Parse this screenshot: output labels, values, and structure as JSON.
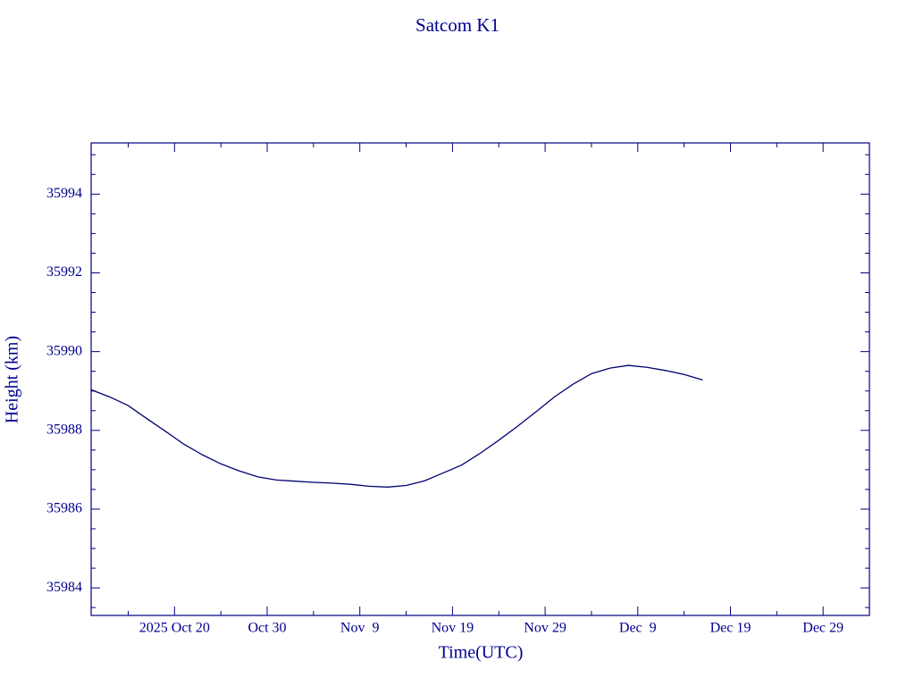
{
  "chart_data": {
    "type": "line",
    "title": "Satcom K1",
    "x_label": "Time(UTC)",
    "y_label": "Height (km)",
    "color": "#000070",
    "axis_color": "#000080",
    "x": [
      "2025-10-11",
      "2025-10-13",
      "2025-10-15",
      "2025-10-17",
      "2025-10-19",
      "2025-10-21",
      "2025-10-23",
      "2025-10-25",
      "2025-10-27",
      "2025-10-29",
      "2025-10-31",
      "2025-11-02",
      "2025-11-04",
      "2025-11-06",
      "2025-11-08",
      "2025-11-10",
      "2025-11-12",
      "2025-11-14",
      "2025-11-16",
      "2025-11-18",
      "2025-11-20",
      "2025-11-22",
      "2025-11-24",
      "2025-11-26",
      "2025-11-28",
      "2025-11-30",
      "2025-12-02",
      "2025-12-04",
      "2025-12-06",
      "2025-12-08",
      "2025-12-10",
      "2025-12-12",
      "2025-12-14",
      "2025-12-16"
    ],
    "values": [
      35989.03,
      35988.85,
      35988.63,
      35988.3,
      35987.98,
      35987.65,
      35987.38,
      35987.15,
      35986.97,
      35986.82,
      35986.74,
      35986.71,
      35986.68,
      35986.66,
      35986.63,
      35986.58,
      35986.56,
      35986.6,
      35986.72,
      35986.92,
      35987.12,
      35987.42,
      35987.75,
      35988.1,
      35988.47,
      35988.85,
      35989.17,
      35989.44,
      35989.58,
      35989.65,
      35989.6,
      35989.52,
      35989.42,
      35989.28
    ],
    "xlim": [
      "2025-10-11",
      "2026-01-03"
    ],
    "xticks": [
      {
        "value": "2025-10-20",
        "label": "2025 Oct 20"
      },
      {
        "value": "2025-10-30",
        "label": "Oct 30"
      },
      {
        "value": "2025-11-09",
        "label": "Nov  9"
      },
      {
        "value": "2025-11-19",
        "label": "Nov 19"
      },
      {
        "value": "2025-11-29",
        "label": "Nov 29"
      },
      {
        "value": "2025-12-09",
        "label": "Dec  9"
      },
      {
        "value": "2025-12-19",
        "label": "Dec 19"
      },
      {
        "value": "2025-12-29",
        "label": "Dec 29"
      }
    ],
    "xminor": [
      "2025-10-15",
      "2025-10-25",
      "2025-11-04",
      "2025-11-14",
      "2025-11-24",
      "2025-12-04",
      "2025-12-14",
      "2025-12-24",
      "2026-01-03"
    ],
    "ylim": [
      35983.3,
      35995.3
    ],
    "yticks": [
      35984,
      35986,
      35988,
      35990,
      35992,
      35994
    ],
    "yminor": [
      35983.5,
      35984.5,
      35985,
      35985.5,
      35986.5,
      35987,
      35987.5,
      35988.5,
      35989,
      35989.5,
      35990.5,
      35991,
      35991.5,
      35992.5,
      35993,
      35993.5,
      35994.5,
      35995
    ]
  }
}
